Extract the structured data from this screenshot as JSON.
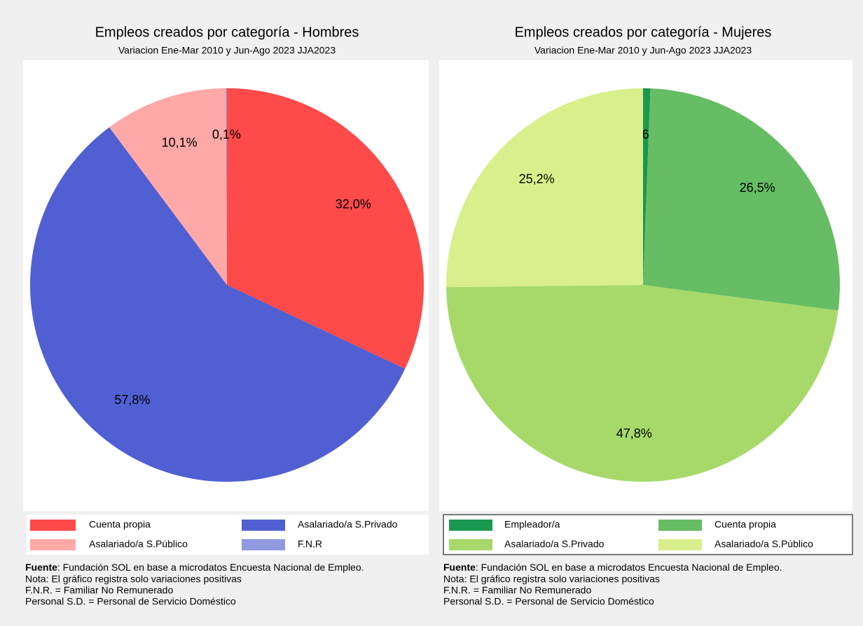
{
  "chart_data": [
    {
      "type": "pie",
      "title": "Empleos creados por categoría - Hombres",
      "subtitle": "Variacion Ene-Mar 2010 y Jun-Ago 2023 JJA2023",
      "categories": [
        "Cuenta propia",
        "Asalariado/a S.Privado",
        "Asalariado/a S.Público",
        "F.N.R"
      ],
      "values": [
        32.0,
        57.8,
        10.1,
        0.1
      ],
      "value_labels": [
        "32,0%",
        "57,8%",
        "10,1%",
        "0,1%"
      ],
      "colors": [
        "#ff4a4a",
        "#505fd2",
        "#ffa8a8",
        "#9199e0"
      ],
      "legend_border": false,
      "source_label": "Fuente",
      "source_text": ": Fundación SOL en base a microdatos Encuesta Nacional de Empleo.",
      "notes": [
        "Nota: El gráfico registra solo variaciones positivas",
        "F.N.R. = Familiar No Remunerado",
        "Personal S.D. = Personal de Servicio Doméstico"
      ]
    },
    {
      "type": "pie",
      "title": "Empleos creados por categoría - Mujeres",
      "subtitle": "Variacion Ene-Mar 2010 y Jun-Ago 2023 JJA2023",
      "categories": [
        "Empleador/a",
        "Cuenta propia",
        "Asalariado/a S.Privado",
        "Asalariado/a S.Público"
      ],
      "values": [
        0.6,
        26.5,
        47.8,
        25.2
      ],
      "value_labels": [
        "0,6%",
        "26,5%",
        "47,8%",
        "25,2%"
      ],
      "colors": [
        "#1a9850",
        "#66bd63",
        "#a6d96a",
        "#d9ef8b"
      ],
      "legend_border": true,
      "source_label": "Fuente",
      "source_text": ": Fundación SOL en base a microdatos Encuesta Nacional de Empleo.",
      "notes": [
        "Nota: El gráfico registra solo variaciones positivas",
        "F.N.R. = Familiar No Remunerado",
        "Personal S.D. = Personal de Servicio Doméstico"
      ]
    }
  ]
}
